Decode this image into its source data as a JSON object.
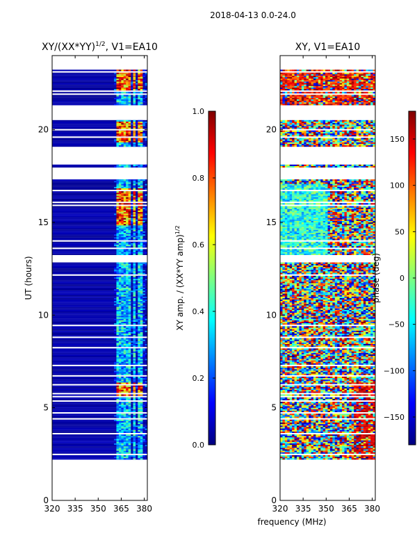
{
  "figure": {
    "suptitle": "2018-04-13 0.0-24.0",
    "xlabel_shared": "frequency (MHz)"
  },
  "colors": {
    "jet": [
      "#00007f",
      "#0000ff",
      "#007fff",
      "#00ffff",
      "#7fff7f",
      "#ffff00",
      "#ff7f00",
      "#ff0000",
      "#7f0000"
    ]
  },
  "chart_data": [
    {
      "type": "heatmap",
      "id": "amp",
      "title": "XY/(XX*YY)",
      "title_superscript": "1/2",
      "title_suffix": ", V1=EA10",
      "xlabel": "",
      "ylabel": "UT (hours)",
      "xlim": [
        320,
        382
      ],
      "ylim": [
        0,
        24
      ],
      "xticks": [
        320,
        335,
        350,
        365,
        380
      ],
      "yticks": [
        0,
        5,
        10,
        15,
        20
      ],
      "colorbar": {
        "label": "XY amp. / (XX*YY amp)",
        "label_superscript": "1/2",
        "range": [
          0.0,
          1.0
        ],
        "ticks": [
          "0.0",
          "0.2",
          "0.4",
          "0.6",
          "0.8",
          "1.0"
        ]
      },
      "data_range_hours": [
        2.2,
        23.2
      ],
      "baseline_level": 0.02,
      "bright_channel_bands_mhz": [
        [
          362,
          366
        ],
        [
          367,
          371
        ],
        [
          373,
          375
        ],
        [
          376,
          379
        ]
      ],
      "hot_rows_hours": [
        [
          5.5,
          6.3
        ],
        [
          14.8,
          16.8
        ],
        [
          19.3,
          20.4
        ],
        [
          22.0,
          23.2
        ]
      ]
    },
    {
      "type": "heatmap",
      "id": "phase",
      "title": "XY, V1=EA10",
      "xlabel": "frequency (MHz)",
      "ylabel": "",
      "xlim": [
        320,
        382
      ],
      "ylim": [
        0,
        24
      ],
      "xticks": [
        320,
        335,
        350,
        365,
        380
      ],
      "yticks": [
        0,
        5,
        10,
        15,
        20
      ],
      "colorbar": {
        "label": "phase (deg)",
        "range": [
          -180,
          180
        ],
        "ticks": [
          "−150",
          "−100",
          "−50",
          "0",
          "50",
          "100",
          "150"
        ]
      },
      "data_range_hours": [
        2.2,
        23.2
      ]
    }
  ]
}
